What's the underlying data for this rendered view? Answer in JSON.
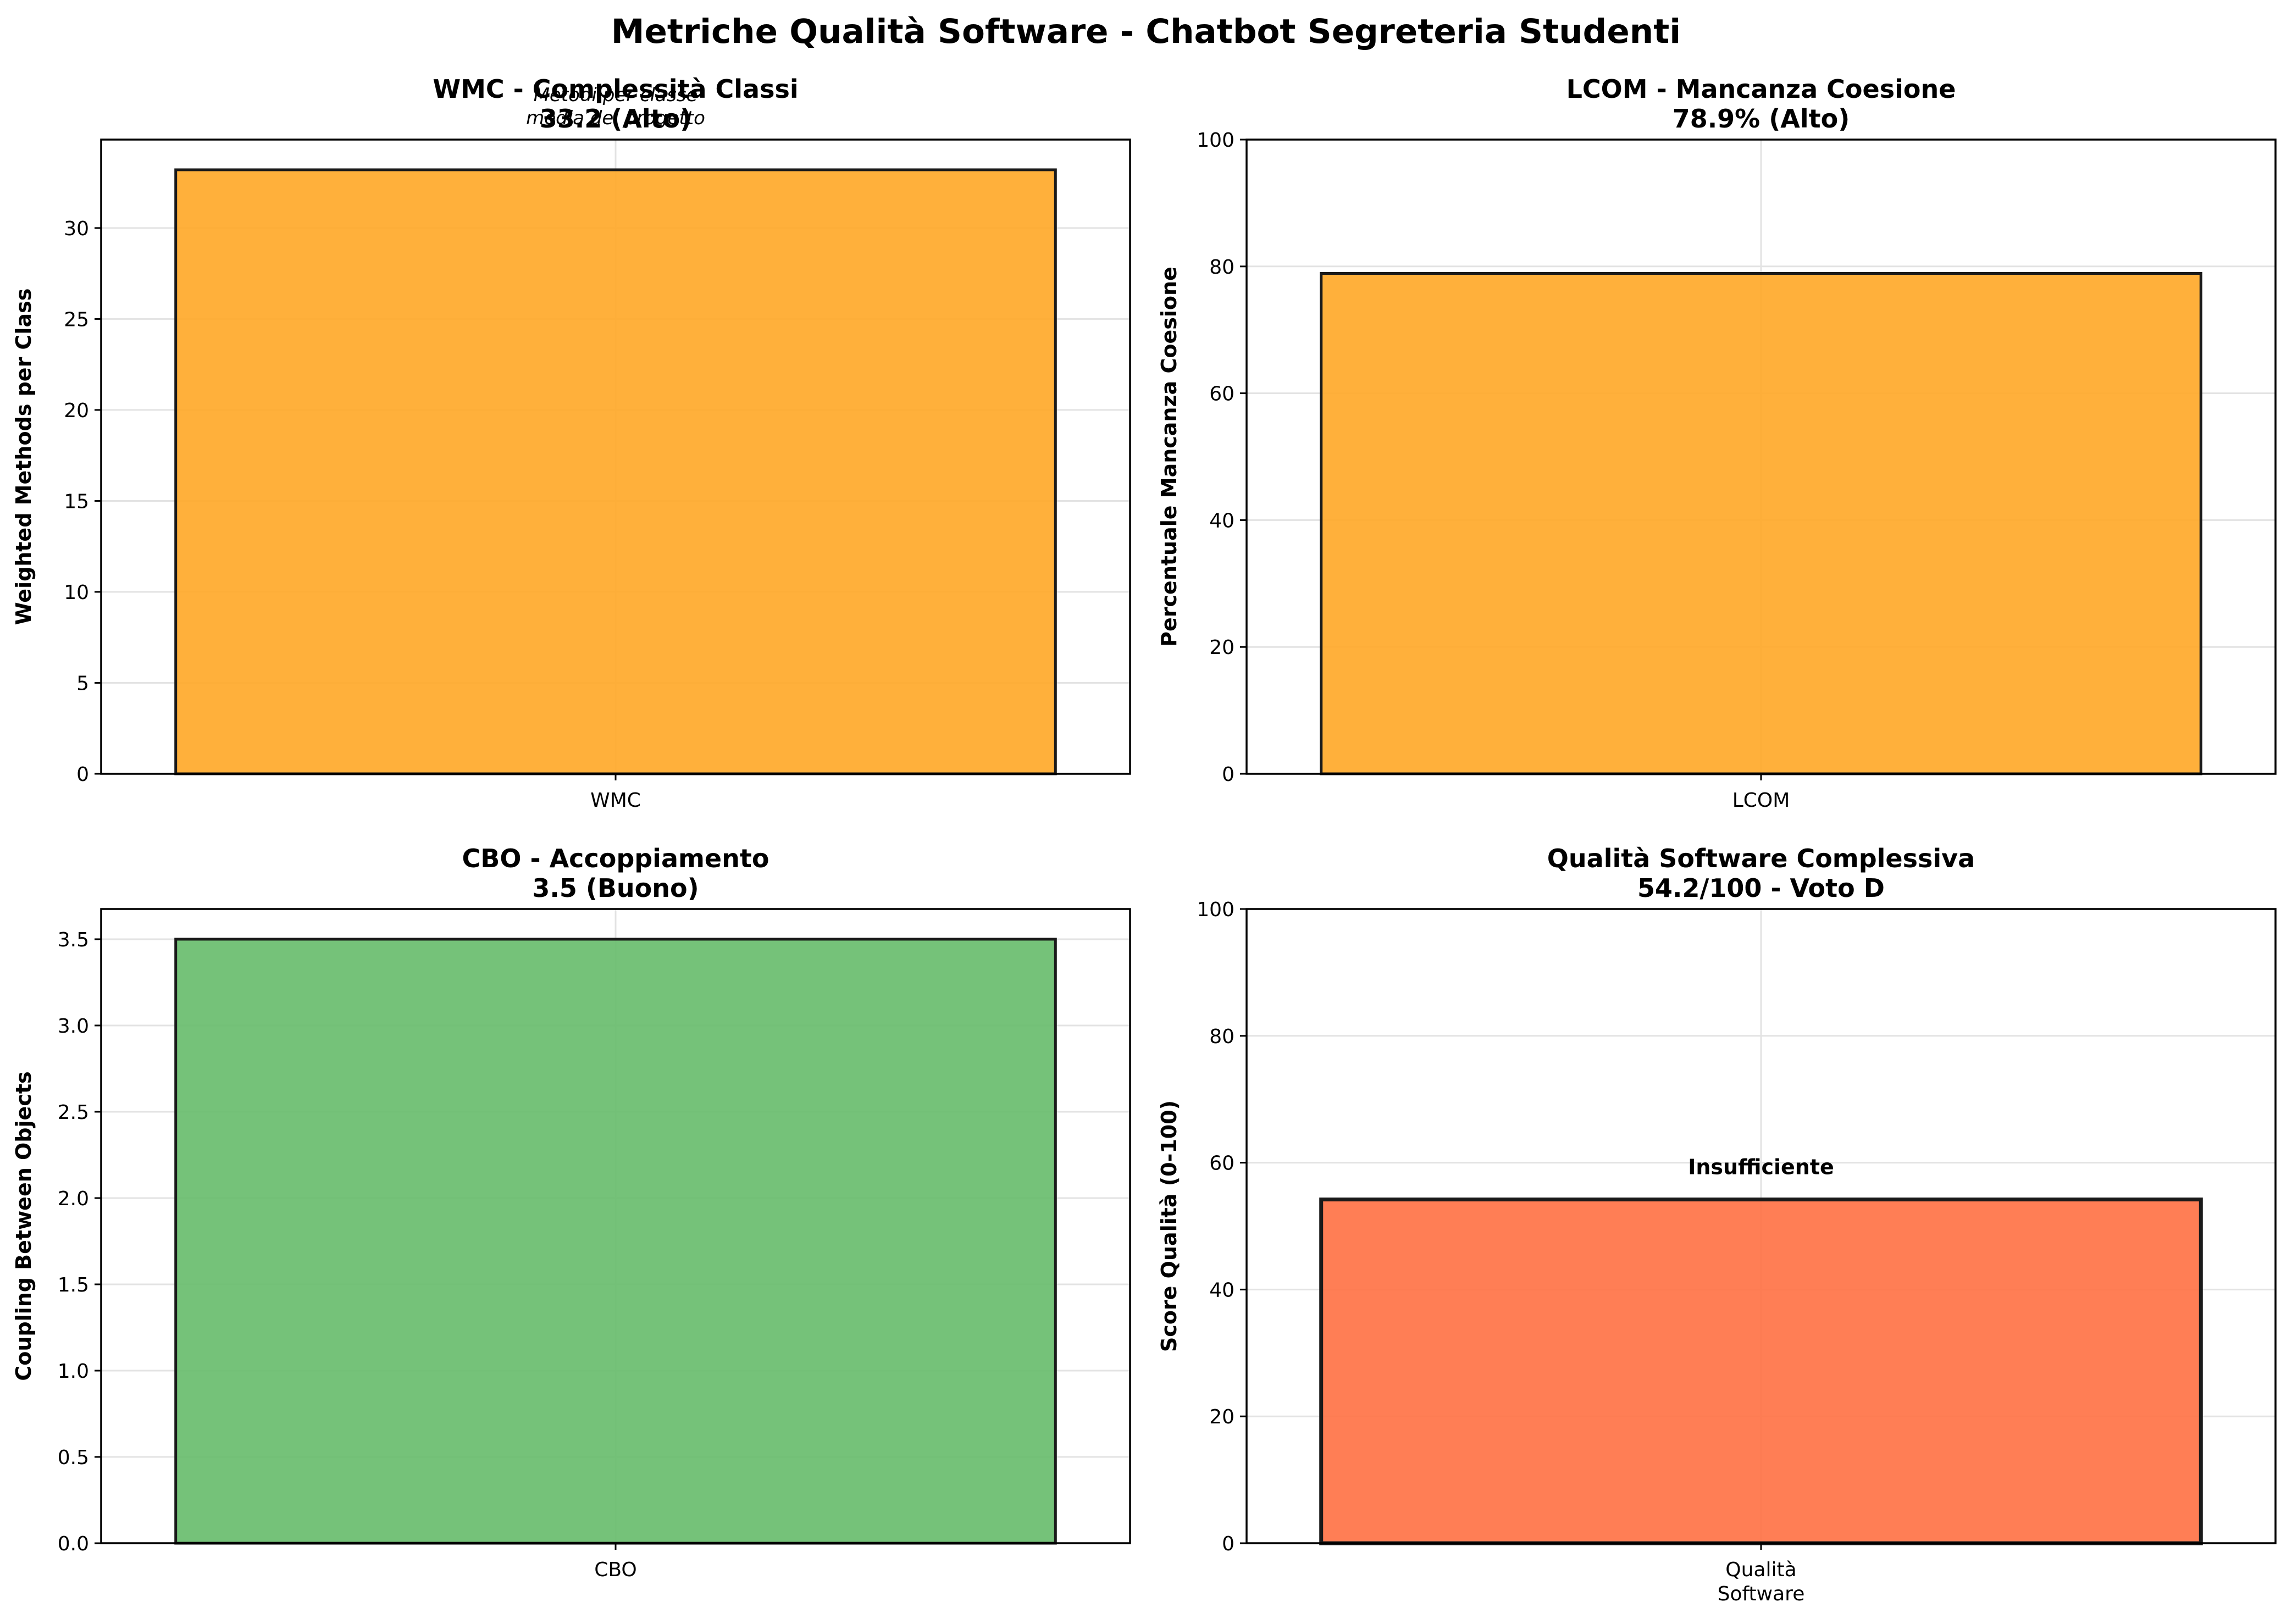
{
  "figure_title": "Metriche Qualità Software - Chatbot Segreteria Studenti",
  "chart_data": [
    {
      "type": "bar",
      "title": "WMC - Complessità Classi\n33.2 (Alto)",
      "xlabel": "",
      "ylabel": "Weighted Methods per Class",
      "categories": [
        "WMC"
      ],
      "values": [
        33.2
      ],
      "ylim": [
        0,
        34.86
      ],
      "yticks": [
        0,
        5,
        10,
        15,
        20,
        25,
        30
      ],
      "tick_labels": [
        "0",
        "5",
        "10",
        "15",
        "20",
        "25",
        "30"
      ],
      "bar_color": "#ffa726",
      "grid": true,
      "annotation": "Metodi per classe\nmedia del progetto"
    },
    {
      "type": "bar",
      "title": "LCOM - Mancanza Coesione\n78.9% (Alto)",
      "xlabel": "",
      "ylabel": "Percentuale Mancanza Coesione",
      "categories": [
        "LCOM"
      ],
      "values": [
        78.9
      ],
      "ylim": [
        0,
        100
      ],
      "yticks": [
        0,
        20,
        40,
        60,
        80,
        100
      ],
      "tick_labels": [
        "0",
        "20",
        "40",
        "60",
        "80",
        "100"
      ],
      "bar_color": "#ffa726",
      "grid": true
    },
    {
      "type": "bar",
      "title": "CBO - Accoppiamento\n3.5 (Buono)",
      "xlabel": "",
      "ylabel": "Coupling Between Objects",
      "categories": [
        "CBO"
      ],
      "values": [
        3.5
      ],
      "ylim": [
        0,
        3.675
      ],
      "yticks": [
        0,
        0.5,
        1,
        1.5,
        2,
        2.5,
        3,
        3.5
      ],
      "tick_labels": [
        "0.0",
        "0.5",
        "1.0",
        "1.5",
        "2.0",
        "2.5",
        "3.0",
        "3.5"
      ],
      "bar_color": "#66bb6a",
      "grid": true
    },
    {
      "type": "bar",
      "title": "Qualità Software Complessiva\n54.2/100 - Voto D",
      "xlabel": "",
      "ylabel": "Score Qualità (0-100)",
      "categories": [
        "Qualità\nSoftware"
      ],
      "values": [
        54.2
      ],
      "ylim": [
        0,
        100
      ],
      "yticks": [
        0,
        20,
        40,
        60,
        80,
        100
      ],
      "tick_labels": [
        "0",
        "20",
        "40",
        "60",
        "80",
        "100"
      ],
      "bar_color": "#ff7043",
      "grid": true,
      "bar_label": "Insufficiente"
    }
  ]
}
